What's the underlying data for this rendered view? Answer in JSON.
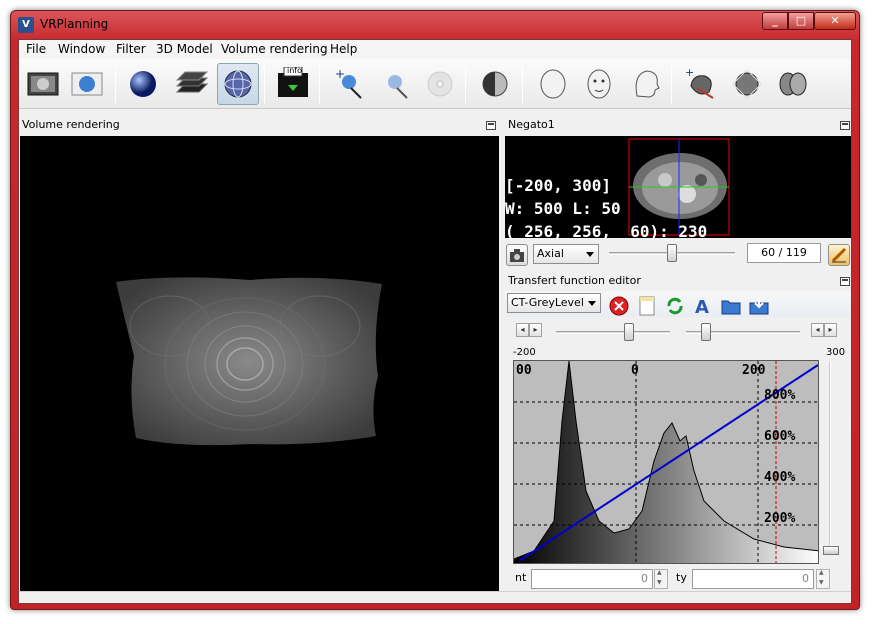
{
  "window": {
    "title": "VRPlanning",
    "icon_label": "V"
  },
  "menu": [
    "File",
    "Window",
    "Filter",
    "3D Model",
    "Volume rendering",
    "Help"
  ],
  "toolbar": {
    "info_label": "info"
  },
  "volume_panel": {
    "title": "Volume rendering"
  },
  "negato_panel": {
    "title": "Negato1",
    "overlay_lines": [
      "[-200, 300]",
      "W: 500 L: 50",
      "( 256, 256,  60): 230"
    ],
    "orientation": "Axial",
    "slice_value": "60 / 119",
    "slice_index": 60,
    "slice_count": 119
  },
  "tf_panel": {
    "title": "Transfert function editor",
    "preset": "CT-GreyLevel",
    "min_label": "-200",
    "max_label": "300",
    "axis_labels": [
      "00",
      "0",
      "200"
    ],
    "percent_labels": [
      "800%",
      "600%",
      "400%",
      "200%"
    ],
    "point_label": "nt",
    "point_value": "0",
    "opacity_label": "ty",
    "opacity_value": "0"
  },
  "colors": {
    "title_red": "#c8282d",
    "tf_line": "#0000cc",
    "grid_red": "#cc0000"
  }
}
